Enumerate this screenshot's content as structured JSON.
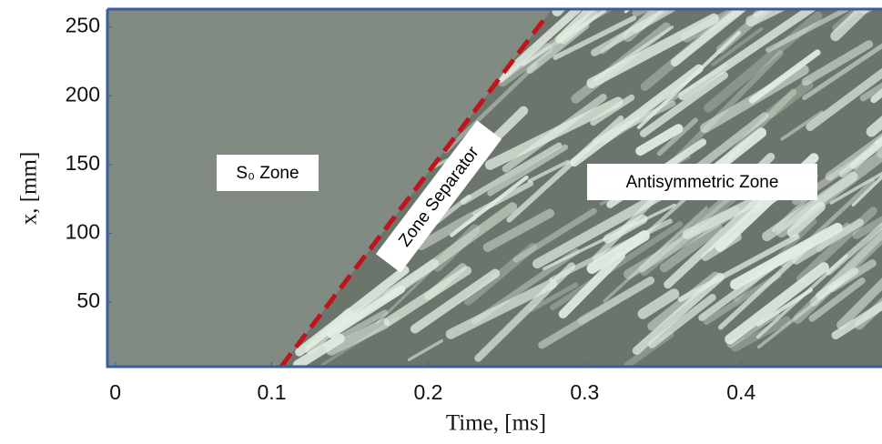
{
  "chart_data": {
    "type": "heatmap",
    "x_label": "Time, [ms]",
    "y_label": "x, [mm]",
    "xlim": [
      -0.005,
      0.49
    ],
    "ylim": [
      3,
      263
    ],
    "xticks": [
      0,
      0.1,
      0.2,
      0.3,
      0.4
    ],
    "yticks": [
      50,
      100,
      150,
      200,
      250
    ],
    "separator": {
      "name": "Zone Separator",
      "x": [
        0.106,
        0.275
      ],
      "y": [
        3,
        257
      ],
      "color": "#c0141c"
    },
    "annotations": [
      "S₀ Zone",
      "Antisymmetric Zone"
    ]
  }
}
